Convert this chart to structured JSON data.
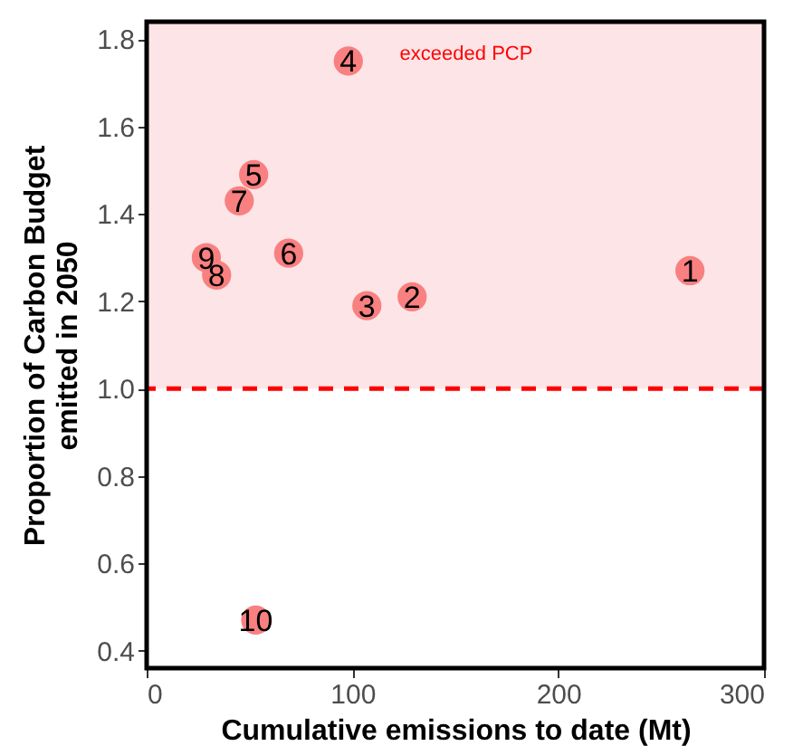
{
  "chart_data": {
    "type": "scatter",
    "xlabel": "Cumulative emissions to date (Mt)",
    "ylabel": "Proportion of Carbon Budget emitted in 2050",
    "x": [
      264,
      129,
      107,
      98,
      52,
      69,
      45,
      34,
      29,
      53
    ],
    "series": [
      {
        "color": "#f98080",
        "values": [
          1.27,
          1.21,
          1.19,
          1.75,
          1.49,
          1.31,
          1.43,
          1.26,
          1.3,
          0.47
        ]
      }
    ],
    "annotations": [
      {
        "text": "1",
        "x": 264,
        "y": 1.27
      },
      {
        "text": "2",
        "x": 129,
        "y": 1.21
      },
      {
        "text": "3",
        "x": 107,
        "y": 1.19
      },
      {
        "text": "4",
        "x": 98,
        "y": 1.75
      },
      {
        "text": "5",
        "x": 52,
        "y": 1.49
      },
      {
        "text": "6",
        "x": 69,
        "y": 1.31
      },
      {
        "text": "7",
        "x": 45,
        "y": 1.43
      },
      {
        "text": "8",
        "x": 34,
        "y": 1.26
      },
      {
        "text": "9",
        "x": 29,
        "y": 1.3
      },
      {
        "text": "10",
        "x": 53,
        "y": 0.47
      }
    ],
    "bands": [
      {
        "axis": "y",
        "from": 1.0,
        "to": 1.84,
        "label": "exceeded PCP",
        "color": "#fde4e6"
      }
    ],
    "ref_lines": [
      {
        "axis": "y",
        "value": 1.0,
        "color": "#ff0000",
        "line_style": "dashed"
      }
    ],
    "xlim": [
      0,
      300
    ],
    "xticks": [
      0,
      100,
      200,
      300
    ],
    "ylim": [
      0.36,
      1.84
    ],
    "yticks": [
      0.4,
      0.6,
      0.8,
      {
        "value": 1.0,
        "label": "1.0"
      },
      1.2,
      1.4,
      1.6,
      1.8
    ],
    "grid": false,
    "marker": "circle"
  }
}
